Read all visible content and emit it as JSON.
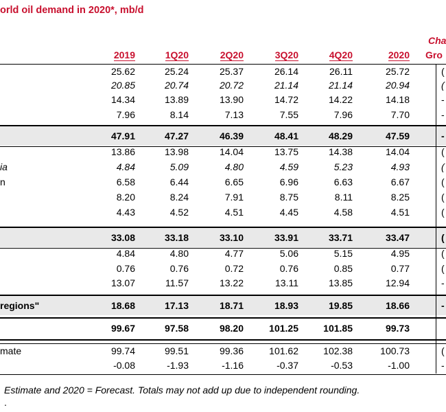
{
  "title": "orld oil demand in 2020*, mb/d",
  "change_header": {
    "line1": "Cha",
    "line2": "Gro"
  },
  "columns": [
    "2019",
    "1Q20",
    "2Q20",
    "3Q20",
    "4Q20",
    "2020"
  ],
  "rows": [
    {
      "label": "",
      "values": [
        "25.62",
        "25.24",
        "25.37",
        "26.14",
        "26.11",
        "25.72"
      ],
      "growth": "("
    },
    {
      "label": "",
      "values": [
        "20.85",
        "20.74",
        "20.72",
        "21.14",
        "21.14",
        "20.94"
      ],
      "growth": "("
    },
    {
      "label": "",
      "values": [
        "14.34",
        "13.89",
        "13.90",
        "14.72",
        "14.22",
        "14.18"
      ],
      "growth": "-"
    },
    {
      "label": "",
      "values": [
        "7.96",
        "8.14",
        "7.13",
        "7.55",
        "7.96",
        "7.70"
      ],
      "growth": "-"
    },
    {
      "label": "",
      "values": [
        "47.91",
        "47.27",
        "46.39",
        "48.41",
        "48.29",
        "47.59"
      ],
      "growth": "-"
    },
    {
      "label": "",
      "values": [
        "13.86",
        "13.98",
        "14.04",
        "13.75",
        "14.38",
        "14.04"
      ],
      "growth": "("
    },
    {
      "label": "ia",
      "values": [
        "4.84",
        "5.09",
        "4.80",
        "4.59",
        "5.23",
        "4.93"
      ],
      "growth": "("
    },
    {
      "label": "n",
      "values": [
        "6.58",
        "6.44",
        "6.65",
        "6.96",
        "6.63",
        "6.67"
      ],
      "growth": "("
    },
    {
      "label": "",
      "values": [
        "8.20",
        "8.24",
        "7.91",
        "8.75",
        "8.11",
        "8.25"
      ],
      "growth": "("
    },
    {
      "label": "",
      "values": [
        "4.43",
        "4.52",
        "4.51",
        "4.45",
        "4.58",
        "4.51"
      ],
      "growth": "("
    },
    {
      "label": "",
      "values": [
        "33.08",
        "33.18",
        "33.10",
        "33.91",
        "33.71",
        "33.47"
      ],
      "growth": "("
    },
    {
      "label": "",
      "values": [
        "4.84",
        "4.80",
        "4.77",
        "5.06",
        "5.15",
        "4.95"
      ],
      "growth": "("
    },
    {
      "label": "",
      "values": [
        "0.76",
        "0.76",
        "0.72",
        "0.76",
        "0.85",
        "0.77"
      ],
      "growth": "("
    },
    {
      "label": "",
      "values": [
        "13.07",
        "11.57",
        "13.22",
        "13.11",
        "13.85",
        "12.94"
      ],
      "growth": "-"
    },
    {
      "label": " regions\"",
      "values": [
        "18.68",
        "17.13",
        "18.71",
        "18.93",
        "19.85",
        "18.66"
      ],
      "growth": "-"
    },
    {
      "label": "",
      "values": [
        "99.67",
        "97.58",
        "98.20",
        "101.25",
        "101.85",
        "99.73"
      ],
      "growth": ""
    },
    {
      "label": "mate",
      "values": [
        "99.74",
        "99.51",
        "99.36",
        "101.62",
        "102.38",
        "100.73"
      ],
      "growth": "("
    },
    {
      "label": "",
      "values": [
        "-0.08",
        "-1.93",
        "-1.16",
        "-0.37",
        "-0.53",
        "-1.00"
      ],
      "growth": "-"
    }
  ],
  "footnote": "Estimate and 2020 = Forecast. Totals may not add up due to independent rounding.",
  "footnote2": "."
}
